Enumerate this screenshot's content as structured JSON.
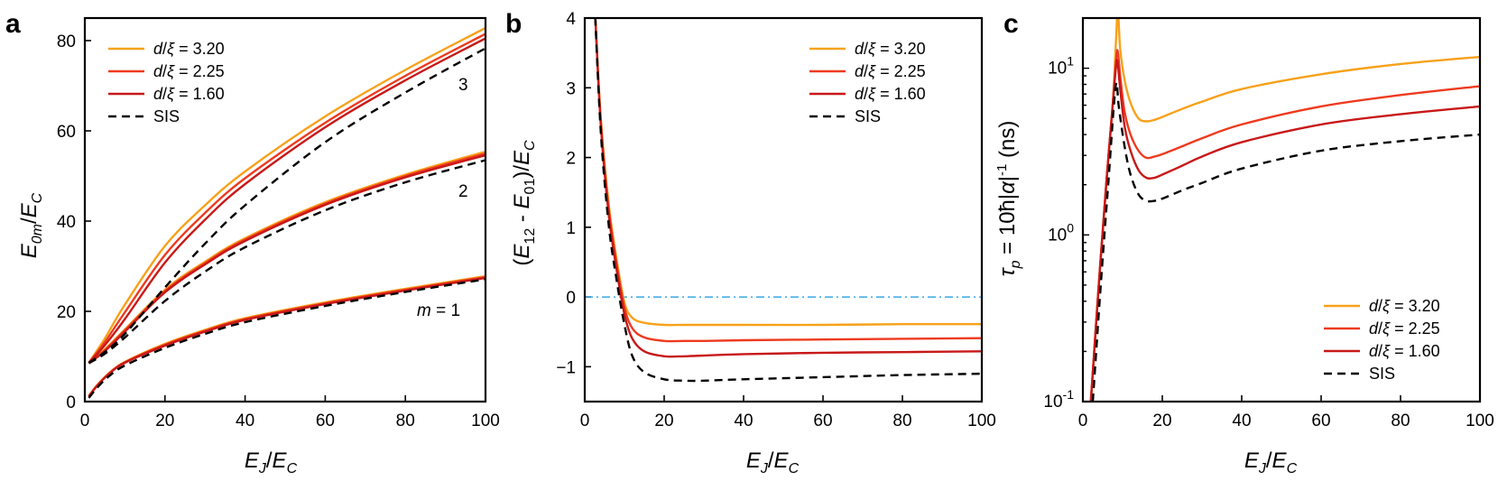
{
  "colors": {
    "d320": "#f7a11a",
    "d225": "#ee3a1e",
    "d160": "#c81818",
    "sis": "#000000",
    "zero_line": "#3aa7e6"
  },
  "chart_data": [
    {
      "panel": "a",
      "type": "line",
      "xlabel": "E_J/E_C",
      "ylabel": "E_0m/E_C",
      "xlim": [
        0,
        100
      ],
      "ylim": [
        0,
        85
      ],
      "xticks": [
        0,
        20,
        40,
        60,
        80,
        100
      ],
      "yticks": [
        0,
        20,
        40,
        60,
        80
      ],
      "legend": "top-left",
      "annotations": [
        "3",
        "2",
        "m = 1"
      ],
      "groups": [
        {
          "m": 1,
          "x": [
            1,
            3,
            6,
            10,
            20,
            30,
            40,
            60,
            80,
            100
          ],
          "series": [
            {
              "name": "d/ξ = 3.20",
              "values": [
                1.3,
                3.6,
                6.3,
                8.8,
                12.8,
                15.9,
                18.5,
                22.0,
                25.0,
                27.8
              ]
            },
            {
              "name": "d/ξ = 2.25",
              "values": [
                1.2,
                3.5,
                6.2,
                8.7,
                12.6,
                15.7,
                18.3,
                21.8,
                24.8,
                27.6
              ]
            },
            {
              "name": "d/ξ = 1.60",
              "values": [
                1.1,
                3.4,
                6.1,
                8.6,
                12.4,
                15.5,
                18.1,
                21.6,
                24.6,
                27.4
              ]
            },
            {
              "name": "SIS",
              "values": [
                0.8,
                3.0,
                5.6,
                8.0,
                11.9,
                15.0,
                17.6,
                21.2,
                24.3,
                27.1
              ]
            }
          ]
        },
        {
          "m": 2,
          "x": [
            1,
            5,
            10,
            20,
            30,
            40,
            60,
            80,
            100
          ],
          "series": [
            {
              "name": "d/ξ = 3.20",
              "values": [
                8.5,
                11.6,
                16.0,
                24.8,
                31.0,
                36.2,
                44.2,
                50.3,
                55.4
              ]
            },
            {
              "name": "d/ξ = 2.25",
              "values": [
                8.5,
                11.4,
                15.8,
                24.5,
                30.7,
                35.9,
                43.9,
                50.0,
                55.0
              ]
            },
            {
              "name": "d/ξ = 1.60",
              "values": [
                8.5,
                11.2,
                15.5,
                24.2,
                30.4,
                35.6,
                43.6,
                49.7,
                54.6
              ]
            },
            {
              "name": "SIS",
              "values": [
                8.5,
                10.6,
                14.2,
                22.3,
                28.8,
                34.2,
                42.4,
                48.6,
                53.5
              ]
            }
          ]
        },
        {
          "m": 3,
          "x": [
            1,
            5,
            10,
            20,
            30,
            40,
            60,
            80,
            100
          ],
          "series": [
            {
              "name": "d/ξ = 3.20",
              "values": [
                8.6,
                14.0,
                21.5,
                34.5,
                43.5,
                51.0,
                63.2,
                73.5,
                82.8
              ]
            },
            {
              "name": "d/ξ = 2.25",
              "values": [
                8.6,
                13.2,
                19.8,
                32.5,
                41.8,
                49.5,
                61.8,
                72.2,
                81.5
              ]
            },
            {
              "name": "d/ξ = 1.60",
              "values": [
                8.6,
                12.5,
                18.3,
                30.8,
                40.3,
                48.2,
                60.8,
                71.2,
                80.5
              ]
            },
            {
              "name": "SIS",
              "values": [
                8.6,
                11.0,
                15.0,
                25.3,
                35.0,
                43.5,
                57.5,
                68.5,
                78.3
              ]
            }
          ]
        }
      ]
    },
    {
      "panel": "b",
      "type": "line",
      "xlabel": "E_J/E_C",
      "ylabel": "(E_12 - E_01)/E_C",
      "xlim": [
        0,
        100
      ],
      "ylim": [
        -1.5,
        4
      ],
      "xticks": [
        0,
        20,
        40,
        60,
        80,
        100
      ],
      "yticks": [
        -1,
        0,
        1,
        2,
        3,
        4
      ],
      "legend": "top-right",
      "reference_line": 0,
      "x": [
        2.5,
        4,
        6,
        8,
        10,
        12,
        15,
        20,
        25,
        30,
        40,
        60,
        80,
        100
      ],
      "series": [
        {
          "name": "d/ξ = 3.20",
          "values": [
            4.2,
            2.6,
            1.35,
            0.55,
            -0.08,
            -0.3,
            -0.37,
            -0.4,
            -0.4,
            -0.4,
            -0.4,
            -0.4,
            -0.39,
            -0.39
          ]
        },
        {
          "name": "d/ξ = 2.25",
          "values": [
            4.2,
            2.55,
            1.28,
            0.48,
            -0.15,
            -0.45,
            -0.58,
            -0.63,
            -0.63,
            -0.63,
            -0.62,
            -0.61,
            -0.6,
            -0.59
          ]
        },
        {
          "name": "d/ξ = 1.60",
          "values": [
            4.2,
            2.5,
            1.2,
            0.4,
            -0.25,
            -0.6,
            -0.78,
            -0.85,
            -0.85,
            -0.84,
            -0.82,
            -0.8,
            -0.79,
            -0.78
          ]
        },
        {
          "name": "SIS",
          "values": [
            4.2,
            2.4,
            1.05,
            0.25,
            -0.4,
            -0.85,
            -1.08,
            -1.18,
            -1.2,
            -1.2,
            -1.18,
            -1.15,
            -1.12,
            -1.1
          ]
        }
      ]
    },
    {
      "panel": "c",
      "type": "line",
      "xlabel": "E_J/E_C",
      "ylabel": "τ_p = 10ħ|α|⁻¹ (ns)",
      "xlim": [
        0,
        100
      ],
      "ylim": [
        0.1,
        20
      ],
      "yscale": "log",
      "xticks": [
        0,
        20,
        40,
        60,
        80,
        100
      ],
      "yticks": [
        0.1,
        1,
        10
      ],
      "legend": "bottom-right",
      "series": [
        {
          "name": "d/ξ = 3.20",
          "x": [
            2,
            4,
            6,
            7.5,
            8.3,
            8.8,
            9.4,
            10.5,
            12,
            14,
            16,
            18,
            20,
            25,
            30,
            40,
            60,
            80,
            100
          ],
          "values": [
            0.1,
            0.5,
            2.2,
            6,
            14,
            22,
            13,
            8.5,
            6.2,
            5.0,
            4.8,
            4.9,
            5.1,
            5.7,
            6.3,
            7.5,
            9.2,
            10.6,
            11.7
          ]
        },
        {
          "name": "d/ξ = 2.25",
          "x": [
            2,
            4,
            6,
            7.5,
            8.4,
            8.8,
            9.5,
            10.5,
            12,
            14,
            16,
            18,
            20,
            25,
            30,
            40,
            60,
            80,
            100
          ],
          "values": [
            0.1,
            0.5,
            2.2,
            6,
            11.5,
            12.5,
            8.5,
            5.5,
            4.0,
            3.2,
            2.9,
            2.95,
            3.05,
            3.4,
            3.8,
            4.6,
            5.9,
            6.9,
            7.8
          ]
        },
        {
          "name": "d/ξ = 1.60",
          "x": [
            2,
            4,
            6,
            7.5,
            8.3,
            8.7,
            9.4,
            10.5,
            12,
            14,
            16,
            18,
            20,
            25,
            30,
            40,
            60,
            80,
            100
          ],
          "values": [
            0.1,
            0.5,
            2.2,
            6,
            10.0,
            11.0,
            7.5,
            4.5,
            3.2,
            2.45,
            2.2,
            2.2,
            2.3,
            2.6,
            2.95,
            3.6,
            4.6,
            5.3,
            5.9
          ]
        },
        {
          "name": "SIS",
          "x": [
            2.5,
            4.5,
            6.5,
            7.8,
            8.5,
            9.0,
            10.5,
            12,
            14,
            16,
            18,
            20,
            25,
            30,
            40,
            60,
            80,
            100
          ],
          "values": [
            0.1,
            0.5,
            2.2,
            6,
            8.2,
            6.0,
            3.4,
            2.3,
            1.75,
            1.6,
            1.6,
            1.65,
            1.85,
            2.05,
            2.5,
            3.2,
            3.65,
            4.0
          ]
        }
      ]
    }
  ]
}
